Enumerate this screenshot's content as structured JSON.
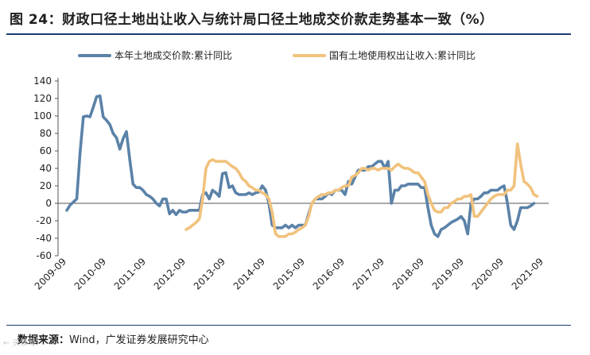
{
  "title": "图 24：财政口径土地出让收入与统计局口径土地成交价款走势基本一致（%）",
  "source": {
    "label": "数据来源：",
    "text": "Wind，广发证券发展研究中心"
  },
  "watermark": "← 头条号",
  "chart_data": {
    "type": "line",
    "title": "财政口径土地出让收入与统计局口径土地成交价款走势基本一致（%）",
    "xlabel": "",
    "ylabel": "",
    "ylim": [
      -60,
      140
    ],
    "yticks": [
      -60,
      -40,
      -20,
      0,
      20,
      40,
      60,
      80,
      100,
      120,
      140
    ],
    "xticks": [
      "2009-09",
      "2010-09",
      "2011-09",
      "2012-09",
      "2013-09",
      "2014-09",
      "2015-09",
      "2016-09",
      "2017-09",
      "2018-09",
      "2019-09",
      "2020-09",
      "2021-09"
    ],
    "xrange": [
      "2009-09",
      "2021-09"
    ],
    "legend_position": "top",
    "grid": false,
    "series": [
      {
        "name": "本年土地成交价款:累计同比",
        "color": "#5b82a8",
        "points": [
          [
            "2009-09",
            -8
          ],
          [
            "2009-10",
            -2
          ],
          [
            "2009-12",
            5
          ],
          [
            "2010-01",
            58
          ],
          [
            "2010-02",
            99
          ],
          [
            "2010-03",
            100
          ],
          [
            "2010-04",
            99
          ],
          [
            "2010-05",
            110
          ],
          [
            "2010-06",
            122
          ],
          [
            "2010-07",
            123
          ],
          [
            "2010-08",
            99
          ],
          [
            "2010-09",
            95
          ],
          [
            "2010-10",
            90
          ],
          [
            "2010-11",
            80
          ],
          [
            "2010-12",
            75
          ],
          [
            "2011-01",
            62
          ],
          [
            "2011-02",
            74
          ],
          [
            "2011-03",
            82
          ],
          [
            "2011-04",
            50
          ],
          [
            "2011-05",
            22
          ],
          [
            "2011-06",
            18
          ],
          [
            "2011-07",
            18
          ],
          [
            "2011-08",
            15
          ],
          [
            "2011-09",
            10
          ],
          [
            "2011-10",
            8
          ],
          [
            "2011-11",
            5
          ],
          [
            "2011-12",
            0
          ],
          [
            "2012-01",
            -3
          ],
          [
            "2012-02",
            5
          ],
          [
            "2012-03",
            5
          ],
          [
            "2012-04",
            -12
          ],
          [
            "2012-05",
            -8
          ],
          [
            "2012-06",
            -13
          ],
          [
            "2012-07",
            -8
          ],
          [
            "2012-08",
            -10
          ],
          [
            "2012-09",
            -10
          ],
          [
            "2012-10",
            -8
          ],
          [
            "2012-11",
            -8
          ],
          [
            "2012-12",
            -8
          ],
          [
            "2013-01",
            -8
          ],
          [
            "2013-02",
            10
          ],
          [
            "2013-03",
            12
          ],
          [
            "2013-04",
            5
          ],
          [
            "2013-05",
            15
          ],
          [
            "2013-06",
            12
          ],
          [
            "2013-07",
            8
          ],
          [
            "2013-08",
            34
          ],
          [
            "2013-09",
            35
          ],
          [
            "2013-10",
            18
          ],
          [
            "2013-11",
            20
          ],
          [
            "2013-12",
            12
          ],
          [
            "2014-01",
            10
          ],
          [
            "2014-02",
            10
          ],
          [
            "2014-03",
            10
          ],
          [
            "2014-04",
            12
          ],
          [
            "2014-05",
            10
          ],
          [
            "2014-06",
            12
          ],
          [
            "2014-07",
            13
          ],
          [
            "2014-08",
            20
          ],
          [
            "2014-09",
            15
          ],
          [
            "2014-10",
            0
          ],
          [
            "2014-11",
            -25
          ],
          [
            "2014-12",
            -28
          ],
          [
            "2015-01",
            -28
          ],
          [
            "2015-02",
            -28
          ],
          [
            "2015-03",
            -25
          ],
          [
            "2015-04",
            -28
          ],
          [
            "2015-05",
            -25
          ],
          [
            "2015-06",
            -28
          ],
          [
            "2015-07",
            -25
          ],
          [
            "2015-08",
            -25
          ],
          [
            "2015-09",
            -25
          ],
          [
            "2015-10",
            -12
          ],
          [
            "2015-11",
            0
          ],
          [
            "2015-12",
            5
          ],
          [
            "2016-01",
            5
          ],
          [
            "2016-02",
            5
          ],
          [
            "2016-03",
            8
          ],
          [
            "2016-04",
            12
          ],
          [
            "2016-05",
            10
          ],
          [
            "2016-06",
            15
          ],
          [
            "2016-07",
            15
          ],
          [
            "2016-08",
            15
          ],
          [
            "2016-09",
            10
          ],
          [
            "2016-10",
            25
          ],
          [
            "2016-11",
            22
          ],
          [
            "2016-12",
            30
          ],
          [
            "2017-01",
            38
          ],
          [
            "2017-02",
            38
          ],
          [
            "2017-03",
            38
          ],
          [
            "2017-04",
            42
          ],
          [
            "2017-05",
            42
          ],
          [
            "2017-06",
            45
          ],
          [
            "2017-07",
            48
          ],
          [
            "2017-08",
            48
          ],
          [
            "2017-09",
            40
          ],
          [
            "2017-10",
            48
          ],
          [
            "2017-11",
            0
          ],
          [
            "2017-12",
            15
          ],
          [
            "2018-01",
            15
          ],
          [
            "2018-02",
            20
          ],
          [
            "2018-03",
            20
          ],
          [
            "2018-04",
            22
          ],
          [
            "2018-05",
            22
          ],
          [
            "2018-06",
            22
          ],
          [
            "2018-07",
            22
          ],
          [
            "2018-08",
            18
          ],
          [
            "2018-09",
            18
          ],
          [
            "2018-10",
            -5
          ],
          [
            "2018-11",
            -25
          ],
          [
            "2018-12",
            -35
          ],
          [
            "2019-01",
            -38
          ],
          [
            "2019-02",
            -30
          ],
          [
            "2019-03",
            -28
          ],
          [
            "2019-04",
            -25
          ],
          [
            "2019-05",
            -22
          ],
          [
            "2019-06",
            -20
          ],
          [
            "2019-07",
            -18
          ],
          [
            "2019-08",
            -15
          ],
          [
            "2019-09",
            -20
          ],
          [
            "2019-10",
            -35
          ],
          [
            "2019-11",
            0
          ],
          [
            "2019-12",
            5
          ],
          [
            "2020-01",
            5
          ],
          [
            "2020-02",
            8
          ],
          [
            "2020-03",
            12
          ],
          [
            "2020-04",
            12
          ],
          [
            "2020-05",
            15
          ],
          [
            "2020-06",
            15
          ],
          [
            "2020-07",
            15
          ],
          [
            "2020-08",
            18
          ],
          [
            "2020-09",
            20
          ],
          [
            "2020-10",
            0
          ],
          [
            "2020-11",
            -25
          ],
          [
            "2020-12",
            -30
          ],
          [
            "2021-01",
            -20
          ],
          [
            "2021-02",
            -5
          ],
          [
            "2021-03",
            -5
          ],
          [
            "2021-04",
            -5
          ],
          [
            "2021-05",
            -3
          ],
          [
            "2021-06",
            0
          ]
        ]
      },
      {
        "name": "国有土地使用权出让收入:累计同比",
        "color": "#f1c27d",
        "points": [
          [
            "2012-09",
            -30
          ],
          [
            "2012-10",
            -28
          ],
          [
            "2012-11",
            -25
          ],
          [
            "2012-12",
            -22
          ],
          [
            "2013-01",
            -18
          ],
          [
            "2013-02",
            5
          ],
          [
            "2013-03",
            40
          ],
          [
            "2013-04",
            48
          ],
          [
            "2013-05",
            50
          ],
          [
            "2013-06",
            48
          ],
          [
            "2013-07",
            48
          ],
          [
            "2013-08",
            48
          ],
          [
            "2013-09",
            48
          ],
          [
            "2013-10",
            45
          ],
          [
            "2013-11",
            42
          ],
          [
            "2013-12",
            40
          ],
          [
            "2014-01",
            35
          ],
          [
            "2014-02",
            28
          ],
          [
            "2014-03",
            25
          ],
          [
            "2014-04",
            20
          ],
          [
            "2014-05",
            18
          ],
          [
            "2014-06",
            15
          ],
          [
            "2014-07",
            15
          ],
          [
            "2014-08",
            12
          ],
          [
            "2014-09",
            10
          ],
          [
            "2014-10",
            5
          ],
          [
            "2014-11",
            -10
          ],
          [
            "2014-12",
            -35
          ],
          [
            "2015-01",
            -38
          ],
          [
            "2015-02",
            -38
          ],
          [
            "2015-03",
            -38
          ],
          [
            "2015-04",
            -35
          ],
          [
            "2015-05",
            -35
          ],
          [
            "2015-06",
            -33
          ],
          [
            "2015-07",
            -30
          ],
          [
            "2015-08",
            -28
          ],
          [
            "2015-09",
            -25
          ],
          [
            "2015-10",
            -15
          ],
          [
            "2015-11",
            0
          ],
          [
            "2015-12",
            5
          ],
          [
            "2016-01",
            8
          ],
          [
            "2016-02",
            10
          ],
          [
            "2016-03",
            10
          ],
          [
            "2016-04",
            12
          ],
          [
            "2016-05",
            12
          ],
          [
            "2016-06",
            15
          ],
          [
            "2016-07",
            15
          ],
          [
            "2016-08",
            18
          ],
          [
            "2016-09",
            20
          ],
          [
            "2016-10",
            20
          ],
          [
            "2016-11",
            30
          ],
          [
            "2016-12",
            32
          ],
          [
            "2017-01",
            35
          ],
          [
            "2017-02",
            40
          ],
          [
            "2017-03",
            40
          ],
          [
            "2017-04",
            38
          ],
          [
            "2017-05",
            40
          ],
          [
            "2017-06",
            40
          ],
          [
            "2017-07",
            38
          ],
          [
            "2017-08",
            40
          ],
          [
            "2017-09",
            40
          ],
          [
            "2017-10",
            40
          ],
          [
            "2017-11",
            38
          ],
          [
            "2017-12",
            42
          ],
          [
            "2018-01",
            45
          ],
          [
            "2018-02",
            42
          ],
          [
            "2018-03",
            40
          ],
          [
            "2018-04",
            40
          ],
          [
            "2018-05",
            38
          ],
          [
            "2018-06",
            35
          ],
          [
            "2018-07",
            35
          ],
          [
            "2018-08",
            30
          ],
          [
            "2018-09",
            25
          ],
          [
            "2018-10",
            10
          ],
          [
            "2018-11",
            0
          ],
          [
            "2018-12",
            -8
          ],
          [
            "2019-01",
            -10
          ],
          [
            "2019-02",
            -10
          ],
          [
            "2019-03",
            -5
          ],
          [
            "2019-04",
            -5
          ],
          [
            "2019-05",
            0
          ],
          [
            "2019-06",
            2
          ],
          [
            "2019-07",
            5
          ],
          [
            "2019-08",
            5
          ],
          [
            "2019-09",
            8
          ],
          [
            "2019-10",
            8
          ],
          [
            "2019-11",
            10
          ],
          [
            "2019-12",
            -15
          ],
          [
            "2020-01",
            -15
          ],
          [
            "2020-02",
            -10
          ],
          [
            "2020-03",
            -5
          ],
          [
            "2020-04",
            0
          ],
          [
            "2020-05",
            5
          ],
          [
            "2020-06",
            8
          ],
          [
            "2020-07",
            10
          ],
          [
            "2020-08",
            10
          ],
          [
            "2020-09",
            10
          ],
          [
            "2020-10",
            15
          ],
          [
            "2020-11",
            15
          ],
          [
            "2020-12",
            20
          ],
          [
            "2021-01",
            68
          ],
          [
            "2021-02",
            45
          ],
          [
            "2021-03",
            25
          ],
          [
            "2021-04",
            22
          ],
          [
            "2021-05",
            18
          ],
          [
            "2021-06",
            10
          ],
          [
            "2021-07",
            8
          ]
        ]
      }
    ]
  }
}
